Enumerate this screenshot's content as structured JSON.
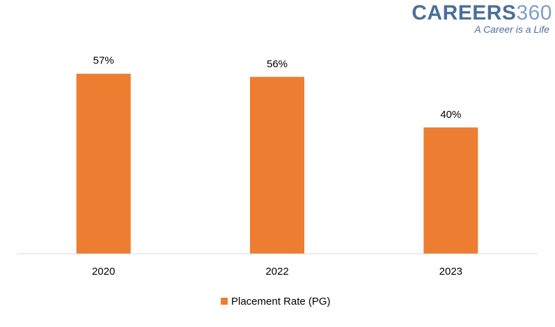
{
  "logo": {
    "brand_part1": "CAREERS",
    "brand_part2": "360",
    "tagline": "A Career is a Life"
  },
  "chart_data": {
    "type": "bar",
    "title": "",
    "xlabel": "",
    "ylabel": "",
    "categories": [
      "2020",
      "2022",
      "2023"
    ],
    "series": [
      {
        "name": "Placement Rate (PG)",
        "values": [
          57,
          56,
          40
        ],
        "data_labels": [
          "57%",
          "56%",
          "40%"
        ],
        "color": "#ED7D31"
      }
    ],
    "ylim": [
      0,
      64
    ],
    "grid": false,
    "legend": "bottom-center",
    "axis_color": "#d9d9d9",
    "text_color": "#000000"
  }
}
